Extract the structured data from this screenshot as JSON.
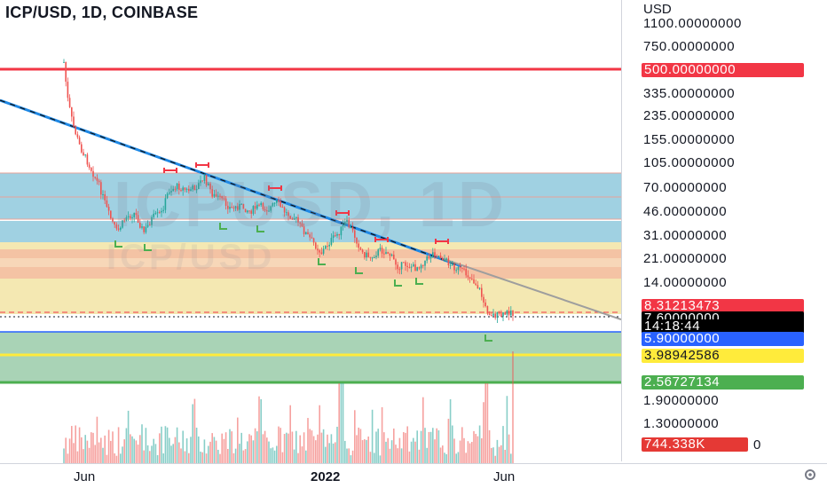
{
  "header": {
    "title": "ICP/USD, 1D, COINBASE"
  },
  "watermark": {
    "main": "ICPUSD, 1D",
    "secondary": "ICP/USD"
  },
  "price_axis": {
    "currency": "USD",
    "ticks": [
      {
        "label": "1100.00000000",
        "value": 1100
      },
      {
        "label": "750.00000000",
        "value": 750
      },
      {
        "label": "335.00000000",
        "value": 335
      },
      {
        "label": "235.00000000",
        "value": 235
      },
      {
        "label": "155.00000000",
        "value": 155
      },
      {
        "label": "105.00000000",
        "value": 105
      },
      {
        "label": "70.00000000",
        "value": 70
      },
      {
        "label": "46.00000000",
        "value": 46
      },
      {
        "label": "31.00000000",
        "value": 31
      },
      {
        "label": "21.00000000",
        "value": 21
      },
      {
        "label": "14.00000000",
        "value": 14
      },
      {
        "label": "1.90000000",
        "value": 1.9
      },
      {
        "label": "1.30000000",
        "value": 1.3
      }
    ],
    "labels": {
      "resistance": {
        "text": "500.00000000",
        "bg": "#f23645",
        "fg": "#ffffff"
      },
      "prev_close": {
        "text": "8.31213473",
        "bg": "#f23645",
        "fg": "#ffffff"
      },
      "last_price": {
        "text": "7.60000000",
        "bg": "#000000",
        "fg": "#ffffff"
      },
      "countdown": {
        "text": "14:18:44",
        "bg": "#000000",
        "fg": "#ffffff"
      },
      "support_blue": {
        "text": "5.90000000",
        "bg": "#2962ff",
        "fg": "#ffffff"
      },
      "support_yellow": {
        "text": "3.98942586",
        "bg": "#ffeb3b",
        "fg": "#131722"
      },
      "support_green": {
        "text": "2.56727134",
        "bg": "#4caf50",
        "fg": "#ffffff"
      },
      "volume": {
        "text": "744.338K",
        "bg": "#e53935",
        "fg": "#ffffff",
        "suffix": "0"
      }
    }
  },
  "time_axis": {
    "ticks": [
      "Jun",
      "2022",
      "Jun"
    ]
  },
  "chart_data": {
    "type": "candlestick",
    "symbol": "ICP/USD",
    "interval": "1D",
    "exchange": "COINBASE",
    "scale": "log",
    "horizontal_levels": [
      500,
      8.31213473,
      5.9,
      3.98942586,
      2.56727134
    ],
    "last_price": 7.6,
    "volume_last": "744.338K",
    "trendline": "descending",
    "colors": {
      "up": "#26a69a",
      "down": "#ef5350",
      "resistance": "#f23645",
      "trendline": "#2962ff"
    }
  }
}
